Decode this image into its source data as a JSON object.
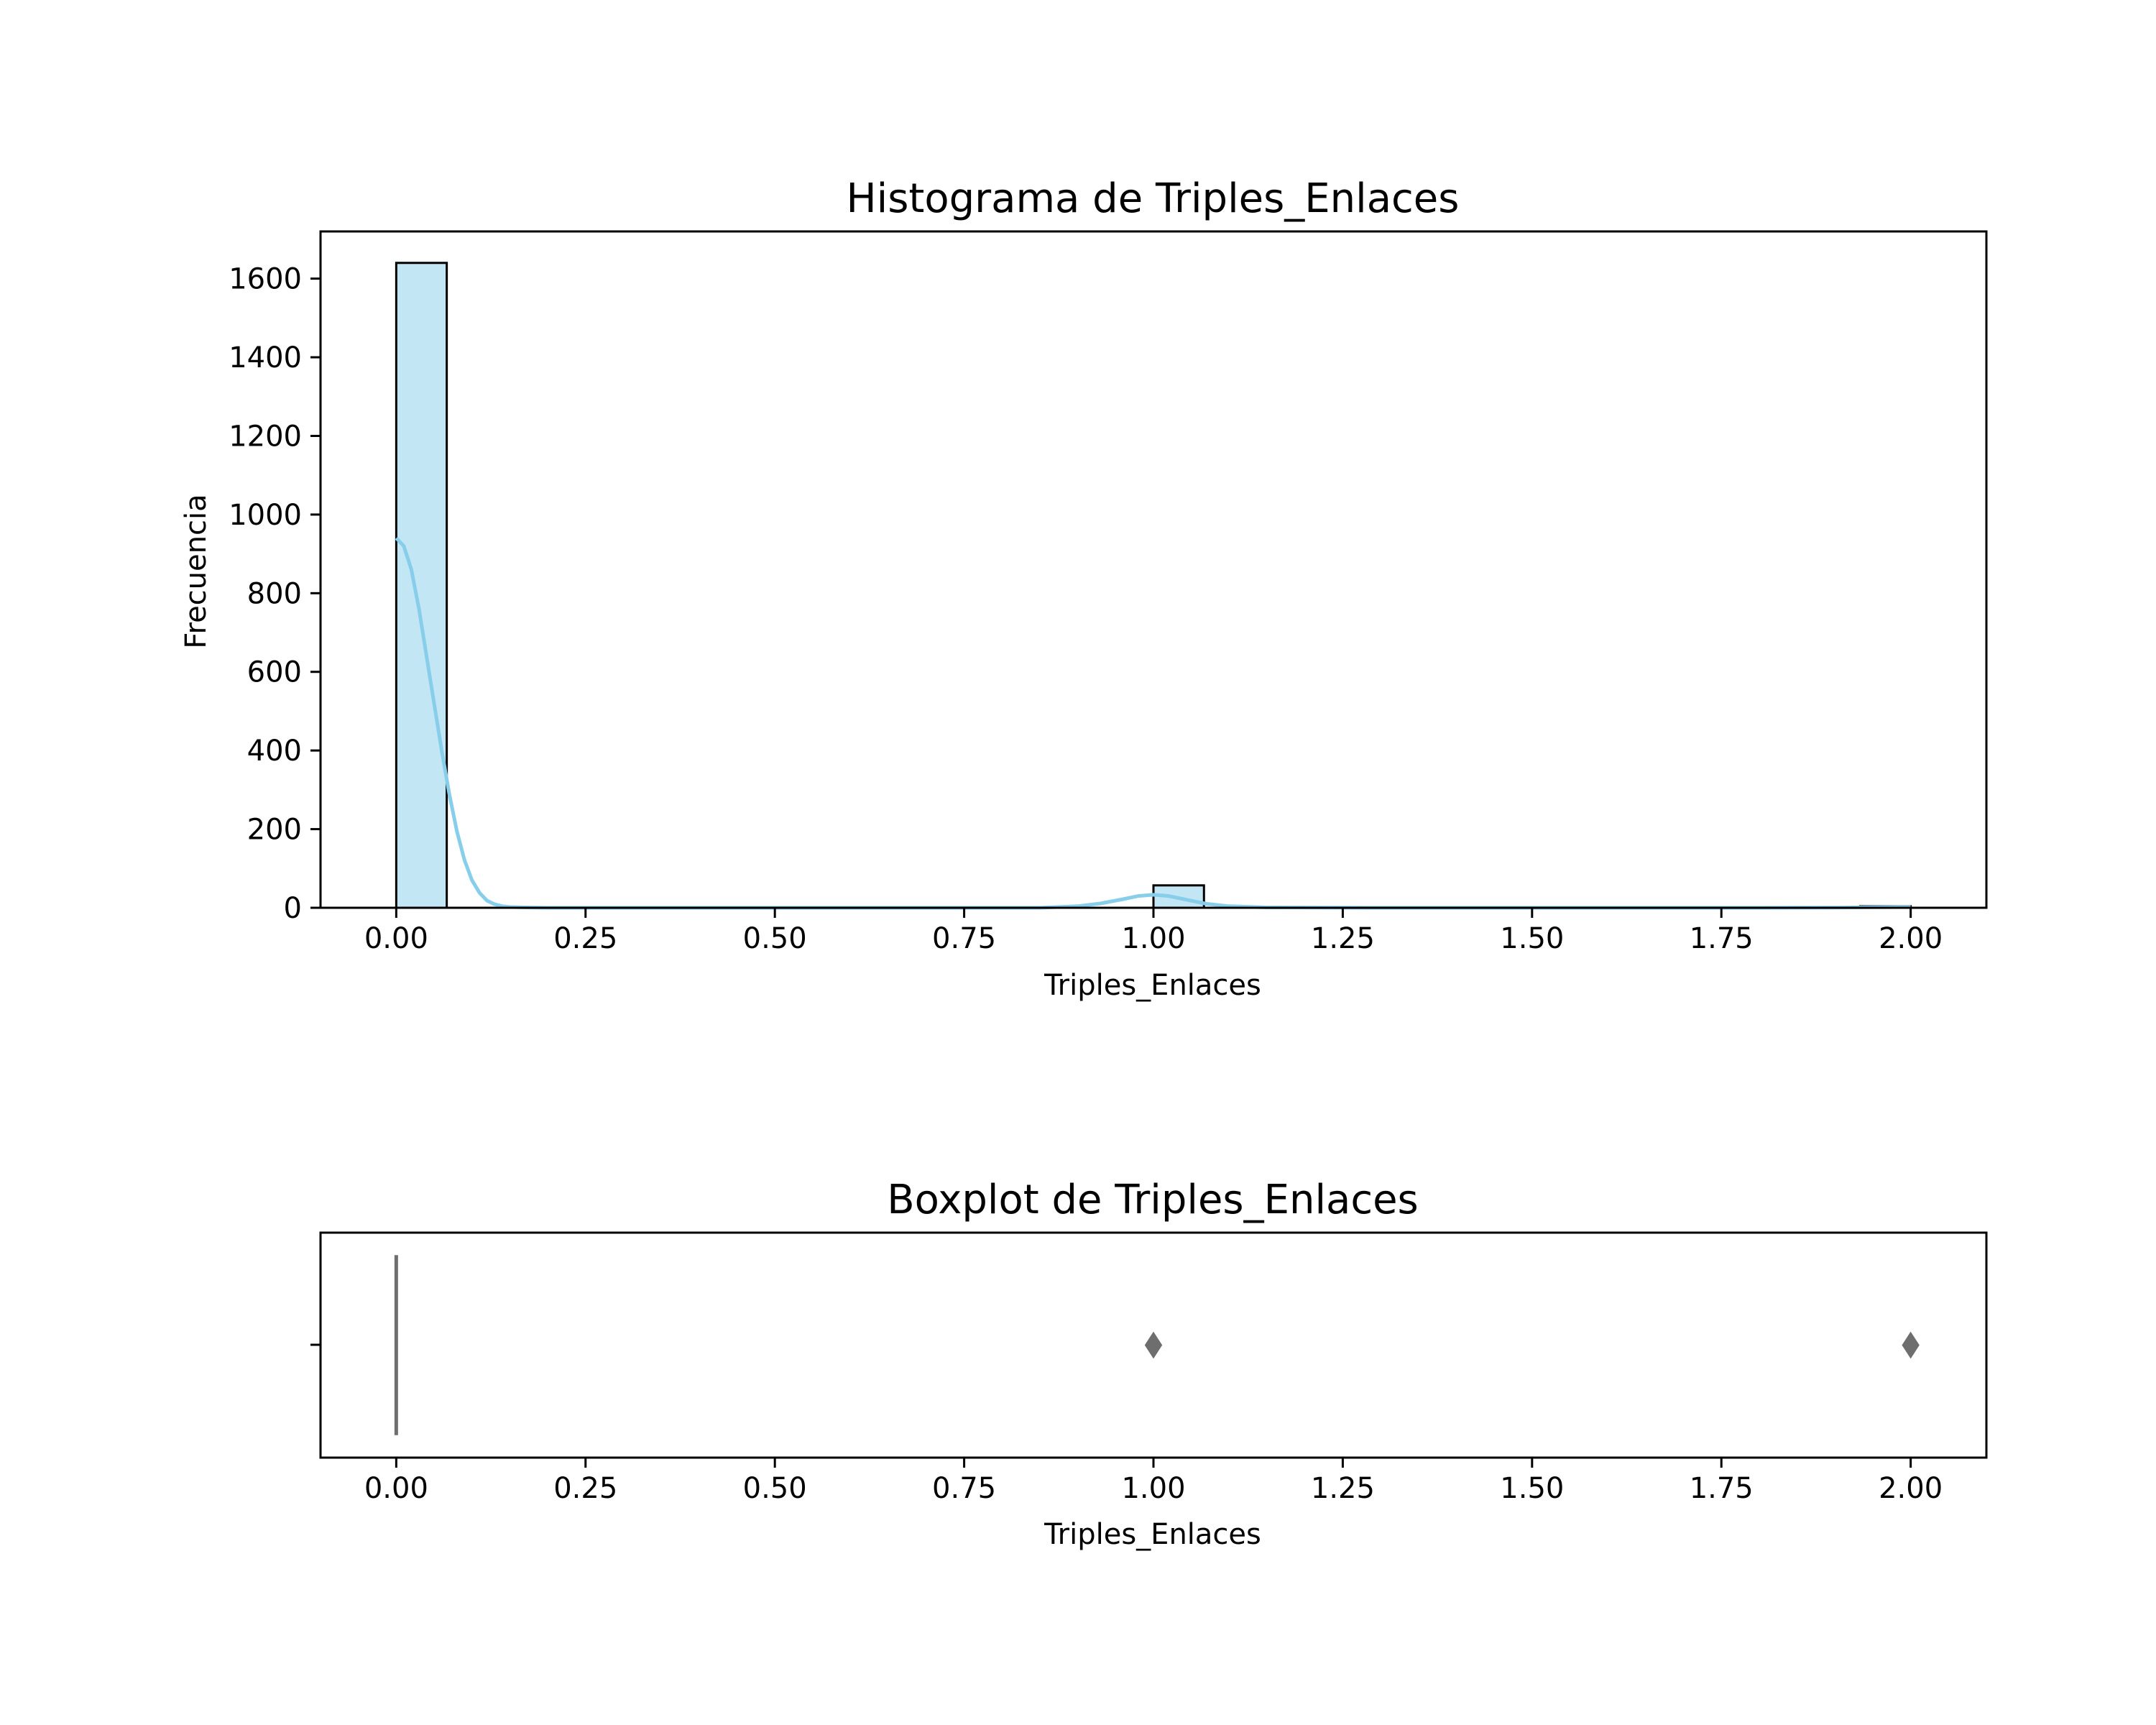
{
  "chart_data": [
    {
      "type": "bar",
      "title": "Histograma de Triples_Enlaces",
      "xlabel": "Triples_Enlaces",
      "ylabel": "Frecuencia",
      "xlim": [
        -0.1,
        2.1
      ],
      "ylim": [
        0,
        1720
      ],
      "x_ticks": [
        "0.00",
        "0.25",
        "0.50",
        "0.75",
        "1.00",
        "1.25",
        "1.50",
        "1.75",
        "2.00"
      ],
      "y_ticks": [
        "0",
        "200",
        "400",
        "600",
        "800",
        "1000",
        "1200",
        "1400",
        "1600"
      ],
      "bins": [
        {
          "start": 0.0,
          "end": 0.0667,
          "count": 1640
        },
        {
          "start": 1.0,
          "end": 1.0667,
          "count": 57
        },
        {
          "start": 1.9333,
          "end": 2.0,
          "count": 4
        }
      ],
      "kde": {
        "x": [
          0.0,
          0.01,
          0.02,
          0.03,
          0.04,
          0.05,
          0.06,
          0.07,
          0.08,
          0.09,
          0.1,
          0.11,
          0.12,
          0.13,
          0.14,
          0.15,
          0.17,
          0.2,
          0.3,
          0.5,
          0.7,
          0.85,
          0.9,
          0.93,
          0.96,
          0.98,
          1.0,
          1.02,
          1.04,
          1.07,
          1.1,
          1.15,
          1.3,
          1.5,
          1.8,
          1.9,
          1.95,
          2.0
        ],
        "y": [
          940,
          920,
          860,
          760,
          640,
          520,
          400,
          290,
          195,
          122,
          70,
          38,
          18,
          9,
          4,
          2,
          1,
          0,
          0,
          0,
          0,
          0,
          4,
          11,
          22,
          30,
          33,
          30,
          22,
          10,
          4,
          1,
          0,
          0,
          0,
          0.5,
          1.5,
          2
        ]
      },
      "colors": {
        "bar_fill": "#87ceeb",
        "bar_edge": "#000000",
        "kde_line": "#87ceeb"
      }
    },
    {
      "type": "boxplot",
      "title": "Boxplot de Triples_Enlaces",
      "xlabel": "Triples_Enlaces",
      "xlim": [
        -0.1,
        2.1
      ],
      "x_ticks": [
        "0.00",
        "0.25",
        "0.50",
        "0.75",
        "1.00",
        "1.25",
        "1.50",
        "1.75",
        "2.00"
      ],
      "box": {
        "min": 0,
        "q1": 0,
        "median": 0,
        "q3": 0,
        "max": 0
      },
      "outliers": [
        1.0,
        2.0
      ],
      "colors": {
        "box": "#6e6e6e",
        "outlier": "#6e6e6e"
      }
    }
  ]
}
